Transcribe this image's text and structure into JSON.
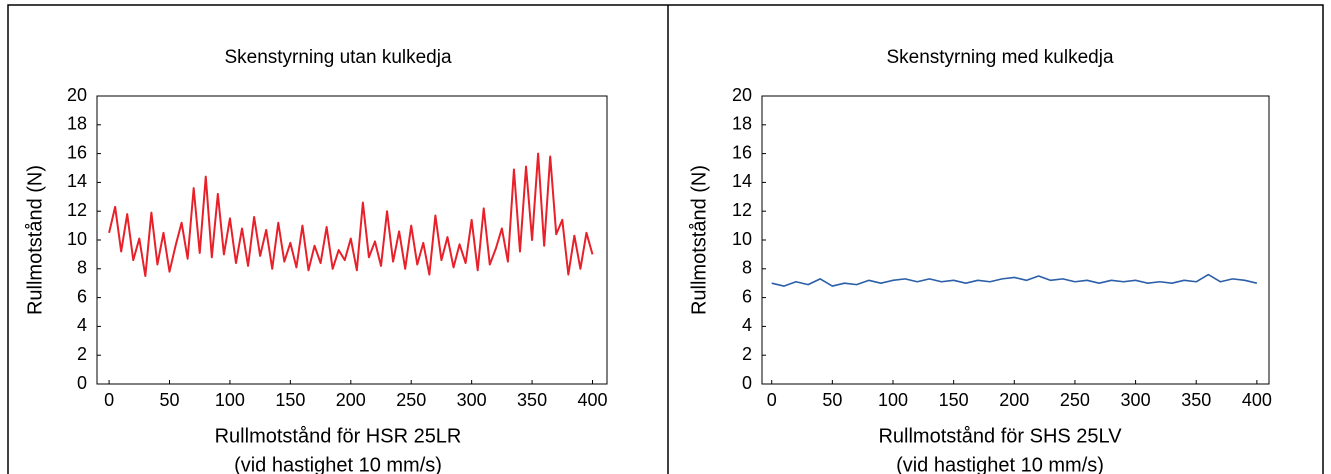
{
  "chart_data": [
    {
      "type": "line",
      "title": "Skenstyrning utan kulkedja",
      "ylabel": "Rullmotstånd (N)",
      "xlabel": [
        "Rullmotstånd för HSR 25LR",
        "(vid hastighet 10 mm/s)"
      ],
      "x": [
        0,
        5,
        10,
        15,
        20,
        25,
        30,
        35,
        40,
        45,
        50,
        55,
        60,
        65,
        70,
        75,
        80,
        85,
        90,
        95,
        100,
        105,
        110,
        115,
        120,
        125,
        130,
        135,
        140,
        145,
        150,
        155,
        160,
        165,
        170,
        175,
        180,
        185,
        190,
        195,
        200,
        205,
        210,
        215,
        220,
        225,
        230,
        235,
        240,
        245,
        250,
        255,
        260,
        265,
        270,
        275,
        280,
        285,
        290,
        295,
        300,
        305,
        310,
        315,
        320,
        325,
        330,
        335,
        340,
        345,
        350,
        355,
        360,
        365,
        370,
        375,
        380,
        385,
        390,
        395,
        400
      ],
      "series": [
        {
          "name": null,
          "color": "#e8202a",
          "values": [
            10.5,
            12.3,
            9.2,
            11.8,
            8.6,
            10.1,
            7.5,
            11.9,
            8.3,
            10.5,
            7.8,
            9.6,
            11.2,
            8.7,
            13.6,
            9.1,
            14.4,
            8.8,
            13.2,
            9.0,
            11.5,
            8.4,
            10.8,
            8.2,
            11.6,
            8.9,
            10.7,
            8.0,
            11.2,
            8.5,
            9.8,
            8.1,
            11.0,
            7.9,
            9.6,
            8.4,
            10.9,
            8.0,
            9.3,
            8.6,
            10.1,
            7.9,
            12.6,
            8.8,
            9.9,
            8.2,
            12.0,
            8.5,
            10.6,
            8.0,
            11.0,
            8.3,
            9.8,
            7.6,
            11.7,
            8.6,
            10.2,
            8.1,
            9.7,
            8.4,
            11.4,
            7.9,
            12.2,
            8.3,
            9.4,
            10.8,
            8.5,
            14.9,
            9.2,
            15.1,
            10.0,
            16.0,
            9.6,
            15.8,
            10.4,
            11.4,
            7.6,
            10.3,
            8.0,
            10.5,
            9.0
          ]
        }
      ],
      "xlim": [
        -10,
        412
      ],
      "xticks": [
        0,
        50,
        100,
        150,
        200,
        250,
        300,
        350,
        400
      ],
      "ylim": [
        0,
        20
      ],
      "yticks": [
        0,
        2,
        4,
        6,
        8,
        10,
        12,
        14,
        16,
        18,
        20
      ]
    },
    {
      "type": "line",
      "title": "Skenstyrning med kulkedja",
      "ylabel": "Rullmotstånd (N)",
      "xlabel": [
        "Rullmotstånd för SHS 25LV",
        "(vid hastighet 10 mm/s)"
      ],
      "x": [
        0,
        10,
        20,
        30,
        40,
        50,
        60,
        70,
        80,
        90,
        100,
        110,
        120,
        130,
        140,
        150,
        160,
        170,
        180,
        190,
        200,
        210,
        220,
        230,
        240,
        250,
        260,
        270,
        280,
        290,
        300,
        310,
        320,
        330,
        340,
        350,
        360,
        370,
        380,
        390,
        400
      ],
      "series": [
        {
          "name": null,
          "color": "#2b5fa8",
          "values": [
            7.0,
            6.8,
            7.1,
            6.9,
            7.3,
            6.8,
            7.0,
            6.9,
            7.2,
            7.0,
            7.2,
            7.3,
            7.1,
            7.3,
            7.1,
            7.2,
            7.0,
            7.2,
            7.1,
            7.3,
            7.4,
            7.2,
            7.5,
            7.2,
            7.3,
            7.1,
            7.2,
            7.0,
            7.2,
            7.1,
            7.2,
            7.0,
            7.1,
            7.0,
            7.2,
            7.1,
            7.6,
            7.1,
            7.3,
            7.2,
            7.0
          ]
        }
      ],
      "xlim": [
        -8,
        410
      ],
      "xticks": [
        0,
        50,
        100,
        150,
        200,
        250,
        300,
        350,
        400
      ],
      "ylim": [
        0,
        20
      ],
      "yticks": [
        0,
        2,
        4,
        6,
        8,
        10,
        12,
        14,
        16,
        18,
        20
      ]
    }
  ]
}
